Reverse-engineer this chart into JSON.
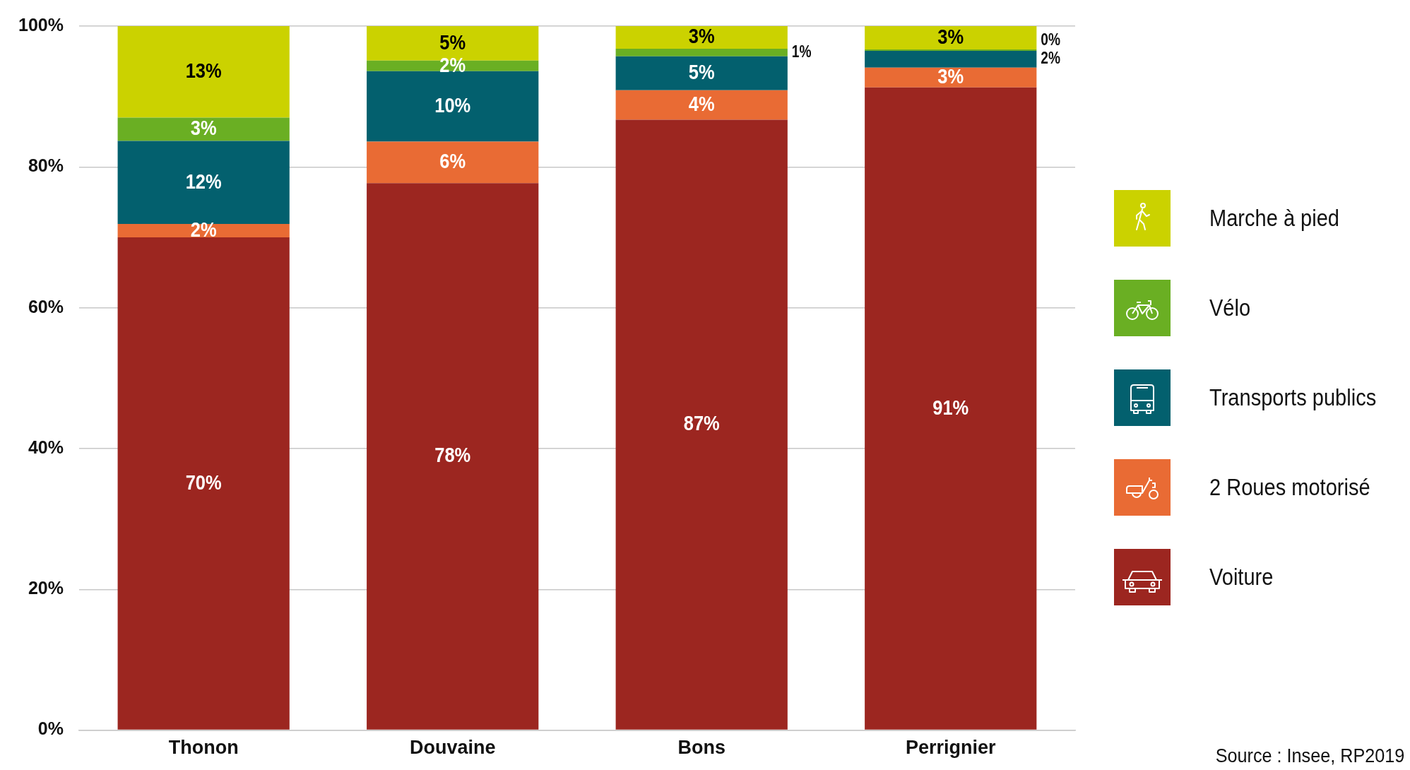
{
  "chart_data": {
    "type": "bar",
    "stacked": true,
    "categories": [
      "Thonon",
      "Douvaine",
      "Bons",
      "Perrignier"
    ],
    "series": [
      {
        "name": "Voiture",
        "color": "#9c2620",
        "values": [
          70.0,
          77.7,
          86.7,
          91.3
        ],
        "value_labels": [
          "70%",
          "78%",
          "87%",
          "91%"
        ]
      },
      {
        "name": "2 Roues motorisé",
        "color": "#e96b34",
        "values": [
          1.9,
          5.9,
          4.2,
          2.8
        ],
        "value_labels": [
          "2%",
          "6%",
          "4%",
          "3%"
        ]
      },
      {
        "name": "Transports publics",
        "color": "#03606e",
        "values": [
          11.8,
          10.0,
          4.8,
          2.4
        ],
        "value_labels": [
          "12%",
          "10%",
          "5%",
          "2%"
        ]
      },
      {
        "name": "Vélo",
        "color": "#6aaf23",
        "values": [
          3.3,
          1.5,
          1.1,
          0.2
        ],
        "value_labels": [
          "3%",
          "2%",
          "1%",
          "0%"
        ]
      },
      {
        "name": "Marche à pied",
        "color": "#cbd200",
        "values": [
          13.0,
          4.9,
          3.2,
          3.3
        ],
        "value_labels": [
          "13%",
          "5%",
          "3%",
          "3%"
        ]
      }
    ],
    "ylim": [
      0,
      100
    ],
    "yticks": [
      {
        "value": 0,
        "label": "0%"
      },
      {
        "value": 20,
        "label": "20%"
      },
      {
        "value": 40,
        "label": "40%"
      },
      {
        "value": 60,
        "label": "60%"
      },
      {
        "value": 80,
        "label": "80%"
      },
      {
        "value": 100,
        "label": "100%"
      }
    ],
    "grid": "y",
    "legend": "right",
    "annotations": [
      "Source : Insee, RP2019"
    ]
  }
}
